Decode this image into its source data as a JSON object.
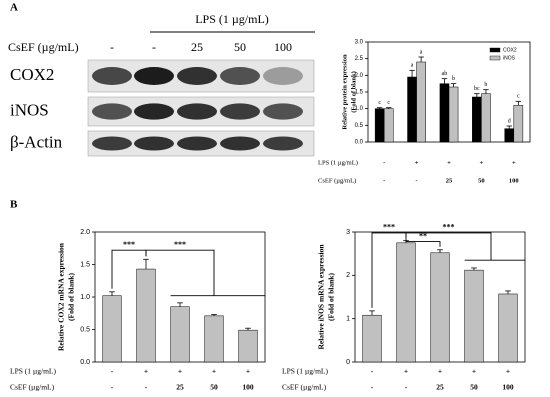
{
  "panel_labels": [
    "A",
    "B"
  ],
  "blot": {
    "header": "LPS (1 µg/mL)",
    "treatment_label": "CsEF (µg/mL)",
    "doses": [
      "-",
      "-",
      "25",
      "50",
      "100"
    ],
    "rows": [
      "COX2",
      "iNOS",
      "β-Actin"
    ]
  },
  "chart_data": [
    {
      "type": "bar",
      "ylabel": [
        "Relative protein expression",
        "(Fold of blank)"
      ],
      "ylim": [
        0,
        3
      ],
      "yticks": [
        {
          "value": 0,
          "label": "0.0"
        },
        {
          "value": 0.5,
          "label": "0.5"
        },
        {
          "value": 1,
          "label": "1.0"
        },
        {
          "value": 1.5,
          "label": "1.5"
        },
        {
          "value": 2,
          "label": "2.0"
        },
        {
          "value": 2.5,
          "label": "2.5"
        },
        {
          "value": 3,
          "label": "3.0"
        }
      ],
      "treatments": [
        {
          "label": "LPS (1 µg/mL)",
          "values": [
            "-",
            "+",
            "+",
            "+",
            "+"
          ]
        },
        {
          "label": "CsEF (µg/mL)",
          "values": [
            "-",
            "-",
            "25",
            "50",
            "100"
          ]
        }
      ],
      "legend": "upper right",
      "series": [
        {
          "name": "COX2",
          "color": "#000000",
          "values": [
            1.0,
            1.95,
            1.75,
            1.35,
            0.4
          ],
          "errors": [
            0.03,
            0.2,
            0.15,
            0.1,
            0.08
          ],
          "letters": [
            "c",
            "a",
            "ab",
            "bc",
            "d"
          ]
        },
        {
          "name": "iNOS",
          "color": "#c0c0c0",
          "values": [
            1.0,
            2.4,
            1.65,
            1.45,
            1.1
          ],
          "errors": [
            0.03,
            0.15,
            0.1,
            0.12,
            0.12
          ],
          "letters": [
            "c",
            "a",
            "b",
            "b",
            "c"
          ]
        }
      ]
    },
    {
      "type": "bar",
      "ylabel": [
        "Relative COX2 mRNA expression",
        "(Fold of blank)"
      ],
      "ylim": [
        0,
        2
      ],
      "yticks": [
        {
          "value": 0,
          "label": "0.0"
        },
        {
          "value": 0.5,
          "label": "0.5"
        },
        {
          "value": 1,
          "label": "1.0"
        },
        {
          "value": 1.5,
          "label": "1.5"
        },
        {
          "value": 2,
          "label": "2.0"
        }
      ],
      "treatments": [
        {
          "label": "LPS (1 µg/mL)",
          "values": [
            "-",
            "+",
            "+",
            "+",
            "+"
          ]
        },
        {
          "label": "CsEF (µg/mL)",
          "values": [
            "-",
            "-",
            "25",
            "50",
            "100"
          ]
        }
      ],
      "color": "#c0c0c0",
      "values": [
        1.02,
        1.43,
        0.85,
        0.71,
        0.49
      ],
      "errors": [
        0.06,
        0.15,
        0.06,
        0.02,
        0.03
      ],
      "significance": [
        "***",
        "***"
      ]
    },
    {
      "type": "bar",
      "ylabel": [
        "Relative iNOS mRNA expression",
        "(Fold of blank)"
      ],
      "ylim": [
        0,
        3
      ],
      "yticks": [
        0,
        1,
        2,
        3
      ],
      "treatments": [
        {
          "label": "LPS (1 µg/mL)",
          "values": [
            "-",
            "+",
            "+",
            "+",
            "+"
          ]
        },
        {
          "label": "CsEF (µg/mL)",
          "values": [
            "-",
            "-",
            "25",
            "50",
            "100"
          ]
        }
      ],
      "color": "#c0c0c0",
      "values": [
        1.08,
        2.75,
        2.52,
        2.12,
        1.57
      ],
      "errors": [
        0.1,
        0.05,
        0.07,
        0.05,
        0.07
      ],
      "significance": [
        "***",
        "**",
        "***"
      ]
    }
  ]
}
